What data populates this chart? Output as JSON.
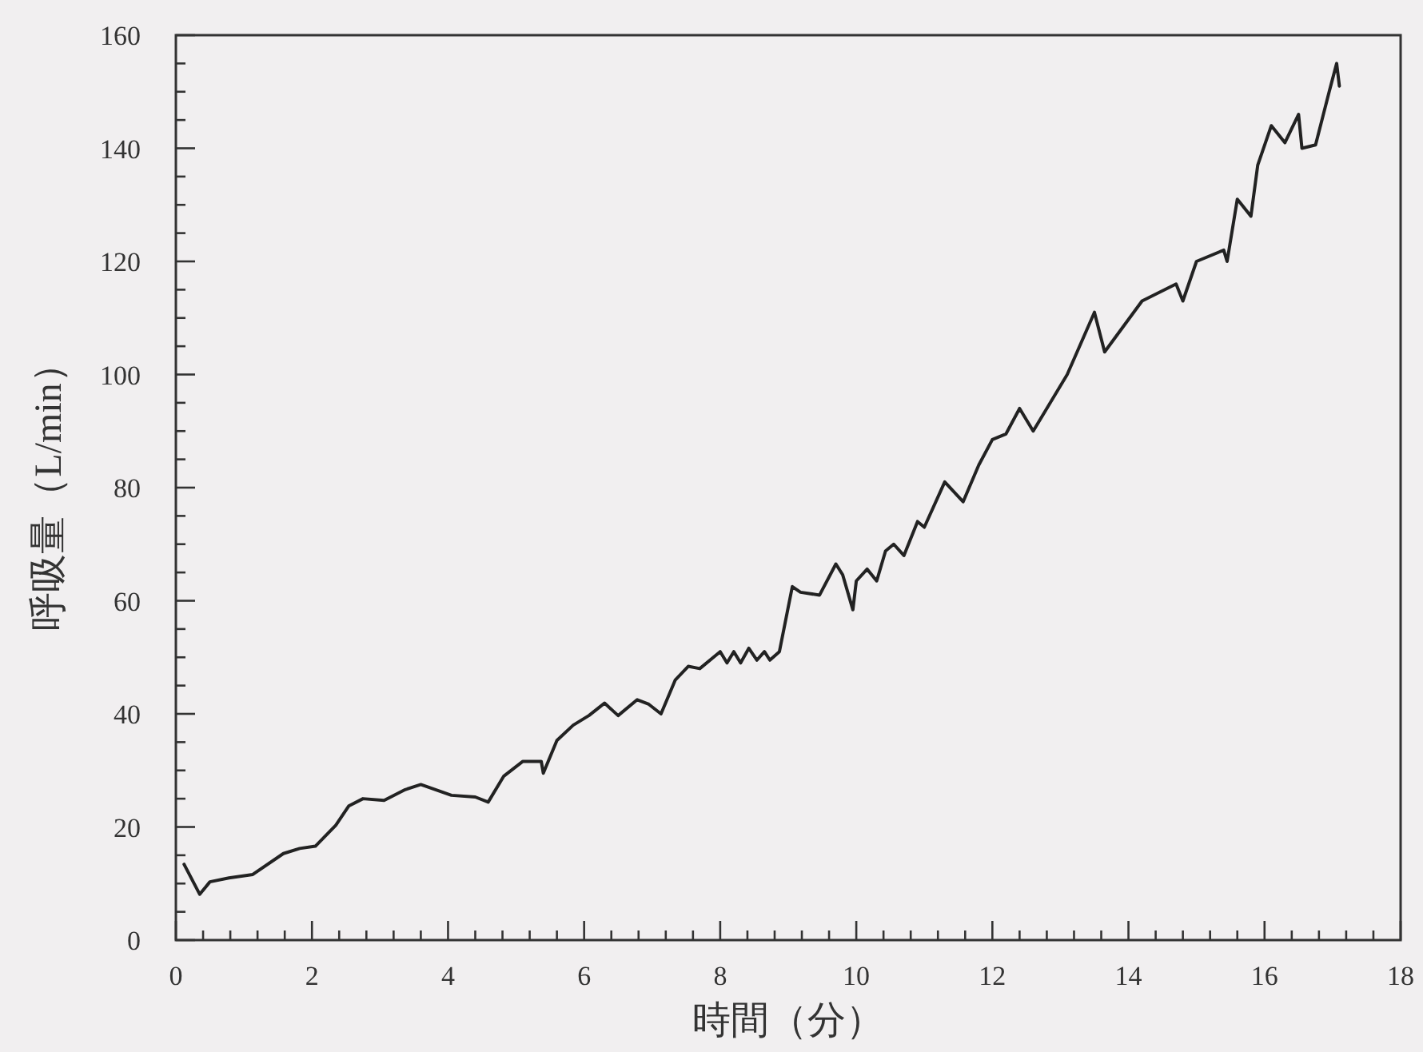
{
  "chart_data": {
    "type": "line",
    "xlabel": "時間（分）",
    "ylabel": "呼吸量（L/min）",
    "color": "#222222",
    "line_style": "solid",
    "x": [
      0.12,
      0.35,
      0.5,
      0.78,
      1.13,
      1.58,
      1.82,
      2.05,
      2.35,
      2.54,
      2.75,
      3.06,
      3.37,
      3.6,
      4.05,
      4.4,
      4.59,
      4.82,
      5.1,
      5.37,
      5.4,
      5.6,
      5.84,
      6.07,
      6.3,
      6.5,
      6.78,
      6.95,
      7.13,
      7.34,
      7.53,
      7.7,
      8.0,
      8.1,
      8.2,
      8.3,
      8.42,
      8.54,
      8.65,
      8.73,
      8.87,
      9.06,
      9.18,
      9.46,
      9.7,
      9.8,
      9.95,
      10.0,
      10.16,
      10.3,
      10.43,
      10.55,
      10.7,
      10.9,
      11.0,
      11.3,
      11.57,
      11.8,
      12.0,
      12.2,
      12.4,
      12.6,
      12.8,
      13.1,
      13.5,
      13.65,
      14.2,
      14.7,
      14.8,
      15.0,
      15.4,
      15.45,
      15.6,
      15.8,
      15.9,
      16.1,
      16.3,
      16.5,
      16.55,
      16.75,
      16.95,
      17.06,
      17.1
    ],
    "values": [
      13.4,
      8.1,
      10.3,
      11,
      11.6,
      15.3,
      16.2,
      16.6,
      20.3,
      23.7,
      25,
      24.7,
      26.6,
      27.5,
      25.6,
      25.3,
      24.4,
      29,
      31.6,
      31.6,
      29.5,
      35.3,
      38,
      39.7,
      41.9,
      39.7,
      42.5,
      41.7,
      40,
      46,
      48.4,
      48,
      51,
      49,
      51,
      49,
      51.6,
      49.5,
      51,
      49.5,
      51,
      62.5,
      61.5,
      61,
      66.5,
      64.6,
      58.4,
      63.5,
      65.6,
      63.5,
      68.8,
      70,
      68,
      74,
      73,
      81,
      77.5,
      84,
      88.5,
      89.5,
      94,
      90,
      94,
      100,
      111,
      104,
      113,
      116,
      113,
      120,
      122,
      120,
      131,
      128,
      137,
      144,
      141,
      146,
      140,
      140.6,
      150,
      155,
      151
    ],
    "xlim": [
      0,
      18
    ],
    "ylim": [
      0,
      160
    ],
    "xticks": [
      0,
      {
        "value": 0.4,
        "label": null
      },
      {
        "value": 0.8,
        "label": null
      },
      {
        "value": 1.2,
        "label": null
      },
      {
        "value": 1.6,
        "label": null
      },
      2,
      {
        "value": 2.4,
        "label": null
      },
      {
        "value": 2.8,
        "label": null
      },
      {
        "value": 3.2,
        "label": null
      },
      {
        "value": 3.6,
        "label": null
      },
      4,
      {
        "value": 4.4,
        "label": null
      },
      {
        "value": 4.8,
        "label": null
      },
      {
        "value": 5.2,
        "label": null
      },
      {
        "value": 5.6,
        "label": null
      },
      6,
      {
        "value": 6.4,
        "label": null
      },
      {
        "value": 6.8,
        "label": null
      },
      {
        "value": 7.2,
        "label": null
      },
      {
        "value": 7.6,
        "label": null
      },
      8,
      {
        "value": 8.4,
        "label": null
      },
      {
        "value": 8.8,
        "label": null
      },
      {
        "value": 9.2,
        "label": null
      },
      {
        "value": 9.6,
        "label": null
      },
      10,
      {
        "value": 10.4,
        "label": null
      },
      {
        "value": 10.8,
        "label": null
      },
      {
        "value": 11.2,
        "label": null
      },
      {
        "value": 11.6,
        "label": null
      },
      12,
      {
        "value": 12.4,
        "label": null
      },
      {
        "value": 12.8,
        "label": null
      },
      {
        "value": 13.2,
        "label": null
      },
      {
        "value": 13.6,
        "label": null
      },
      14,
      {
        "value": 14.4,
        "label": null
      },
      {
        "value": 14.8,
        "label": null
      },
      {
        "value": 15.2,
        "label": null
      },
      {
        "value": 15.6,
        "label": null
      },
      16,
      {
        "value": 16.4,
        "label": null
      },
      {
        "value": 16.8,
        "label": null
      },
      {
        "value": 17.2,
        "label": null
      },
      {
        "value": 17.6,
        "label": null
      },
      18
    ],
    "yticks": [
      0,
      {
        "value": 5,
        "label": null
      },
      {
        "value": 10,
        "label": null
      },
      {
        "value": 15,
        "label": null
      },
      20,
      {
        "value": 25,
        "label": null
      },
      {
        "value": 30,
        "label": null
      },
      {
        "value": 35,
        "label": null
      },
      40,
      {
        "value": 45,
        "label": null
      },
      {
        "value": 50,
        "label": null
      },
      {
        "value": 55,
        "label": null
      },
      60,
      {
        "value": 65,
        "label": null
      },
      {
        "value": 70,
        "label": null
      },
      {
        "value": 75,
        "label": null
      },
      80,
      {
        "value": 85,
        "label": null
      },
      {
        "value": 90,
        "label": null
      },
      {
        "value": 95,
        "label": null
      },
      100,
      {
        "value": 105,
        "label": null
      },
      {
        "value": 110,
        "label": null
      },
      {
        "value": 115,
        "label": null
      },
      120,
      {
        "value": 125,
        "label": null
      },
      {
        "value": 130,
        "label": null
      },
      {
        "value": 135,
        "label": null
      },
      140,
      {
        "value": 145,
        "label": null
      },
      {
        "value": 150,
        "label": null
      },
      {
        "value": 155,
        "label": null
      },
      160
    ]
  }
}
